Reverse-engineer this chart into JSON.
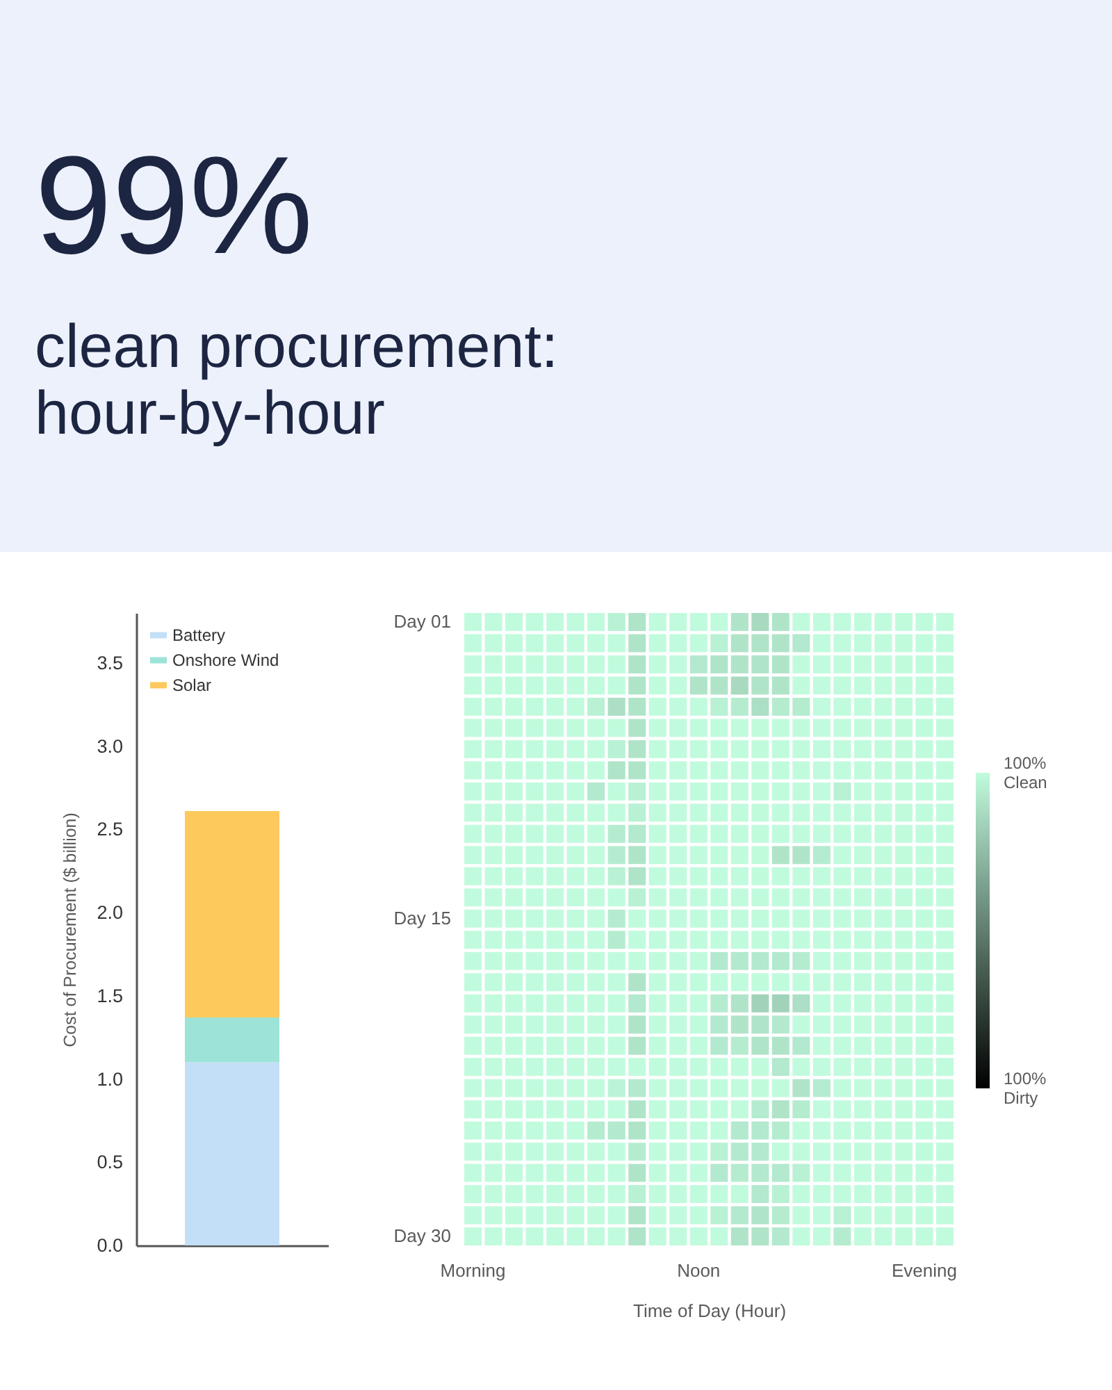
{
  "chart_data": [
    {
      "type": "bar",
      "title": "99%",
      "subtitle": "clean procurement:\nhour-by-hour",
      "ylabel": "Cost of Procurement ($ billion)",
      "categories": [
        null
      ],
      "stacked": true,
      "series": [
        {
          "name": "Battery",
          "color": "#c3dff7",
          "values": [
            1.1
          ]
        },
        {
          "name": "Onshore Wind",
          "color": "#9de3d8",
          "values": [
            0.27
          ]
        },
        {
          "name": "Solar",
          "color": "#fdc95c",
          "values": [
            1.24
          ]
        }
      ],
      "ylim": [
        0,
        3.8
      ],
      "yticks": [
        {
          "value": 0,
          "label": "0.0"
        },
        0.5,
        {
          "value": 1,
          "label": "1.0"
        },
        1.5,
        {
          "value": 2,
          "label": "2.0"
        },
        2.5,
        {
          "value": 3,
          "label": "3.0"
        },
        3.5
      ],
      "legend": "top left",
      "tick_labels": "y"
    },
    {
      "type": "heatmap",
      "xlabel": "Time of Day (Hour)",
      "categories": [
        "Morning",
        null,
        null,
        null,
        null,
        null,
        null,
        null,
        null,
        null,
        null,
        "Noon",
        null,
        null,
        null,
        null,
        null,
        null,
        null,
        null,
        null,
        null,
        "Evening",
        null
      ],
      "y_categories": [
        "Day 01",
        null,
        null,
        null,
        null,
        null,
        null,
        null,
        null,
        null,
        null,
        null,
        null,
        null,
        "Day 15",
        null,
        null,
        null,
        null,
        null,
        null,
        null,
        null,
        null,
        null,
        null,
        null,
        null,
        null,
        "Day 30"
      ],
      "cells": [
        [
          100,
          100,
          100,
          100,
          100,
          100,
          100,
          92,
          82,
          100,
          100,
          100,
          100,
          82,
          74,
          82,
          100,
          100,
          100,
          100,
          100,
          100,
          100,
          100
        ],
        [
          100,
          100,
          100,
          100,
          100,
          100,
          100,
          100,
          82,
          100,
          100,
          100,
          92,
          82,
          82,
          82,
          86,
          100,
          100,
          100,
          100,
          100,
          100,
          100
        ],
        [
          100,
          100,
          100,
          100,
          100,
          100,
          100,
          100,
          82,
          100,
          100,
          86,
          82,
          82,
          82,
          82,
          100,
          100,
          100,
          100,
          100,
          100,
          100,
          100
        ],
        [
          100,
          100,
          100,
          100,
          100,
          100,
          100,
          100,
          82,
          100,
          100,
          82,
          82,
          74,
          82,
          82,
          100,
          100,
          100,
          100,
          100,
          100,
          100,
          100
        ],
        [
          100,
          100,
          100,
          100,
          100,
          100,
          92,
          78,
          82,
          100,
          100,
          100,
          92,
          88,
          78,
          88,
          88,
          100,
          100,
          100,
          100,
          100,
          100,
          100
        ],
        [
          100,
          100,
          100,
          100,
          100,
          100,
          100,
          100,
          82,
          100,
          100,
          100,
          100,
          100,
          100,
          100,
          100,
          100,
          100,
          100,
          100,
          100,
          100,
          100
        ],
        [
          100,
          100,
          100,
          100,
          100,
          100,
          100,
          92,
          82,
          100,
          100,
          100,
          100,
          100,
          100,
          100,
          100,
          100,
          100,
          100,
          100,
          100,
          100,
          100
        ],
        [
          100,
          100,
          100,
          100,
          100,
          100,
          100,
          82,
          82,
          100,
          100,
          100,
          100,
          100,
          100,
          100,
          100,
          100,
          100,
          100,
          100,
          100,
          100,
          100
        ],
        [
          100,
          100,
          100,
          100,
          100,
          100,
          86,
          100,
          92,
          100,
          100,
          100,
          100,
          100,
          100,
          100,
          100,
          100,
          92,
          100,
          100,
          100,
          100,
          100
        ],
        [
          100,
          100,
          100,
          100,
          100,
          100,
          100,
          100,
          92,
          100,
          100,
          100,
          100,
          100,
          100,
          100,
          100,
          100,
          100,
          100,
          100,
          100,
          100,
          100
        ],
        [
          100,
          100,
          100,
          100,
          100,
          100,
          100,
          88,
          86,
          100,
          100,
          100,
          100,
          100,
          100,
          100,
          100,
          100,
          100,
          100,
          100,
          100,
          100,
          100
        ],
        [
          100,
          100,
          100,
          100,
          100,
          100,
          100,
          88,
          82,
          100,
          100,
          100,
          100,
          100,
          100,
          82,
          82,
          88,
          100,
          100,
          100,
          100,
          100,
          100
        ],
        [
          100,
          100,
          100,
          100,
          100,
          100,
          100,
          92,
          82,
          100,
          100,
          100,
          100,
          100,
          100,
          100,
          100,
          100,
          100,
          100,
          100,
          100,
          100,
          100
        ],
        [
          100,
          100,
          100,
          100,
          100,
          100,
          100,
          100,
          92,
          100,
          100,
          100,
          100,
          100,
          100,
          100,
          100,
          100,
          100,
          100,
          100,
          100,
          100,
          100
        ],
        [
          100,
          100,
          100,
          100,
          100,
          100,
          100,
          88,
          100,
          100,
          100,
          100,
          100,
          100,
          100,
          100,
          100,
          100,
          100,
          100,
          100,
          100,
          100,
          100
        ],
        [
          100,
          100,
          100,
          100,
          100,
          100,
          100,
          88,
          100,
          100,
          100,
          100,
          100,
          100,
          100,
          100,
          100,
          100,
          100,
          100,
          100,
          100,
          100,
          100
        ],
        [
          100,
          100,
          100,
          100,
          100,
          100,
          100,
          100,
          100,
          100,
          100,
          100,
          86,
          86,
          86,
          86,
          88,
          100,
          100,
          100,
          100,
          100,
          100,
          100
        ],
        [
          100,
          100,
          100,
          100,
          100,
          100,
          100,
          100,
          82,
          100,
          100,
          100,
          100,
          100,
          100,
          100,
          100,
          100,
          100,
          100,
          100,
          100,
          100,
          100
        ],
        [
          100,
          100,
          100,
          100,
          100,
          100,
          100,
          100,
          86,
          100,
          100,
          100,
          88,
          82,
          68,
          68,
          78,
          100,
          100,
          100,
          100,
          100,
          100,
          100
        ],
        [
          100,
          100,
          100,
          100,
          100,
          100,
          100,
          100,
          82,
          100,
          100,
          100,
          86,
          82,
          82,
          86,
          100,
          100,
          100,
          100,
          100,
          100,
          100,
          100
        ],
        [
          100,
          100,
          100,
          100,
          100,
          100,
          100,
          100,
          82,
          100,
          100,
          100,
          86,
          88,
          82,
          82,
          86,
          100,
          100,
          100,
          100,
          100,
          100,
          100
        ],
        [
          100,
          100,
          100,
          100,
          100,
          100,
          100,
          100,
          100,
          100,
          100,
          100,
          100,
          100,
          100,
          86,
          100,
          100,
          100,
          100,
          100,
          100,
          100,
          100
        ],
        [
          100,
          100,
          100,
          100,
          100,
          100,
          100,
          94,
          86,
          100,
          100,
          100,
          100,
          100,
          100,
          100,
          82,
          88,
          100,
          100,
          100,
          100,
          100,
          100
        ],
        [
          100,
          100,
          100,
          100,
          100,
          100,
          100,
          100,
          82,
          100,
          100,
          100,
          100,
          100,
          88,
          82,
          88,
          100,
          100,
          100,
          100,
          100,
          100,
          100
        ],
        [
          100,
          100,
          100,
          100,
          100,
          100,
          88,
          86,
          82,
          100,
          100,
          100,
          100,
          86,
          86,
          88,
          100,
          100,
          100,
          100,
          100,
          100,
          100,
          100
        ],
        [
          100,
          100,
          100,
          100,
          100,
          100,
          100,
          100,
          88,
          100,
          100,
          100,
          92,
          86,
          86,
          100,
          100,
          100,
          100,
          100,
          100,
          100,
          100,
          100
        ],
        [
          100,
          100,
          100,
          100,
          100,
          100,
          100,
          100,
          82,
          100,
          100,
          100,
          86,
          88,
          86,
          86,
          92,
          100,
          100,
          100,
          100,
          100,
          100,
          100
        ],
        [
          100,
          100,
          100,
          100,
          100,
          100,
          100,
          100,
          92,
          100,
          100,
          100,
          100,
          100,
          86,
          92,
          100,
          100,
          100,
          100,
          100,
          100,
          100,
          100
        ],
        [
          100,
          100,
          100,
          100,
          100,
          100,
          100,
          100,
          82,
          100,
          100,
          100,
          92,
          86,
          82,
          88,
          100,
          100,
          92,
          100,
          100,
          100,
          100,
          100
        ],
        [
          100,
          100,
          100,
          100,
          100,
          100,
          100,
          100,
          82,
          100,
          100,
          100,
          100,
          82,
          82,
          86,
          100,
          100,
          88,
          100,
          100,
          100,
          100,
          100
        ]
      ],
      "colors": [
        "#000000",
        "#c1fbdd"
      ],
      "clim": [
        -100,
        100
      ],
      "cticks": [
        {
          "value": 100,
          "label": "100%\nClean"
        },
        {
          "value": -100,
          "label": "100%\nDirty"
        }
      ]
    }
  ]
}
